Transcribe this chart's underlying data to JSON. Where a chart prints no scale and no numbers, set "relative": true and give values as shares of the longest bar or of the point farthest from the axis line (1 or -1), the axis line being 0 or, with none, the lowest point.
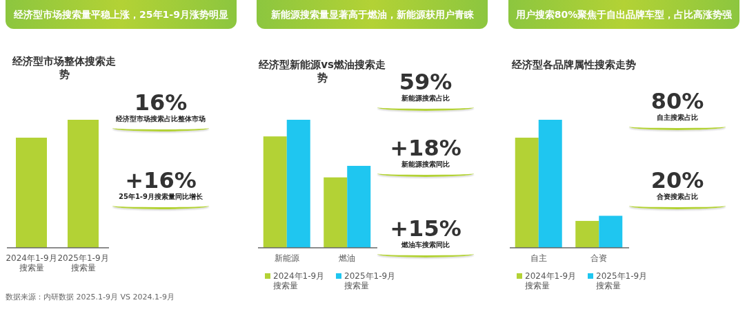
{
  "chart_data": [
    {
      "type": "bar",
      "relative": true,
      "title": "经济型市场搜索量平稳上涨，25年1-9月涨势明显",
      "subtitle": "经济型市场整体搜索走势",
      "categories": [
        "2024年1-9月搜索量",
        "2025年1-9月搜索量"
      ],
      "series": [
        {
          "color": "#b3d235",
          "values": [
            0.86,
            1
          ]
        }
      ],
      "annotations": [
        "16%",
        "经济型市场搜索占比整体市场",
        "+16%",
        "25年1-9月搜索量同比增长",
        "数据来源：内研数据 2025.1-9月 VS 2024.1-9月"
      ]
    },
    {
      "type": "bar",
      "relative": true,
      "title": "新能源搜索量显著高于燃油，新能源获用户青睐",
      "subtitle": "经济型新能源vs燃油搜索走势",
      "categories": [
        "新能源",
        "燃油"
      ],
      "legend": "bottom",
      "series": [
        {
          "name": "2024年1-9月搜索量",
          "color": "#b3d235",
          "values": [
            0.87,
            0.55
          ]
        },
        {
          "name": "2025年1-9月搜索量",
          "color": "#1fc6f0",
          "values": [
            1,
            0.64
          ]
        }
      ],
      "annotations": [
        "59%",
        "新能源搜索占比",
        "+18%",
        "新能源搜索同比",
        "+15%",
        "燃油车搜索同比"
      ]
    },
    {
      "type": "bar",
      "relative": true,
      "title": "用户搜索80%聚焦于自出品牌车型，占比高涨势强",
      "subtitle": "经济型各品牌属性搜索走势",
      "categories": [
        "自主",
        "合资"
      ],
      "legend": "bottom",
      "series": [
        {
          "name": "2024年1-9月搜索量",
          "color": "#b3d235",
          "values": [
            0.86,
            0.21
          ]
        },
        {
          "name": "2025年1-9月搜索量",
          "color": "#1fc6f0",
          "values": [
            1,
            0.25
          ]
        }
      ],
      "annotations": [
        "80%",
        "自主搜索占比",
        "20%",
        "合资搜索占比"
      ]
    }
  ]
}
